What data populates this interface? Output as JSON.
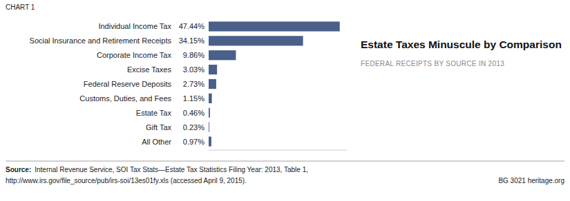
{
  "chart_data": {
    "type": "bar",
    "orientation": "horizontal",
    "title": "Estate Taxes Minuscule by Comparison",
    "subtitle": "FEDERAL RECEIPTS BY SOURCE IN 2013",
    "annotations": [
      "CHART 1",
      "Source:",
      "Internal Revenue Service, SOI Tax Stats—Estate Tax Statistics Filing Year: 2013, Table 1,",
      "http://www.irs.gov/file_source/pub/irs-soi/13es01fy.xls (accessed April 9, 2015).",
      "BG 3021    heritage.org"
    ],
    "categories": [
      "Individual Income Tax",
      "Social Insurance and Retirement Receipts",
      "Corporate Income Tax",
      "Excise Taxes",
      "Federal Reserve Deposits",
      "Customs, Duties, and Fees",
      "Estate Tax",
      "Gift Tax",
      "All Other"
    ],
    "values": [
      47.44,
      34.15,
      9.86,
      3.03,
      2.73,
      1.15,
      0.46,
      0.23,
      0.97
    ],
    "value_labels": [
      "47.44%",
      "34.15%",
      "9.86%",
      "3.03%",
      "2.73%",
      "1.15%",
      "0.46%",
      "0.23%",
      "0.97%"
    ],
    "data_labels": true,
    "color": "#4a5f8a",
    "xlim": [
      0,
      50
    ],
    "grid": false,
    "tick_labels": "y"
  }
}
